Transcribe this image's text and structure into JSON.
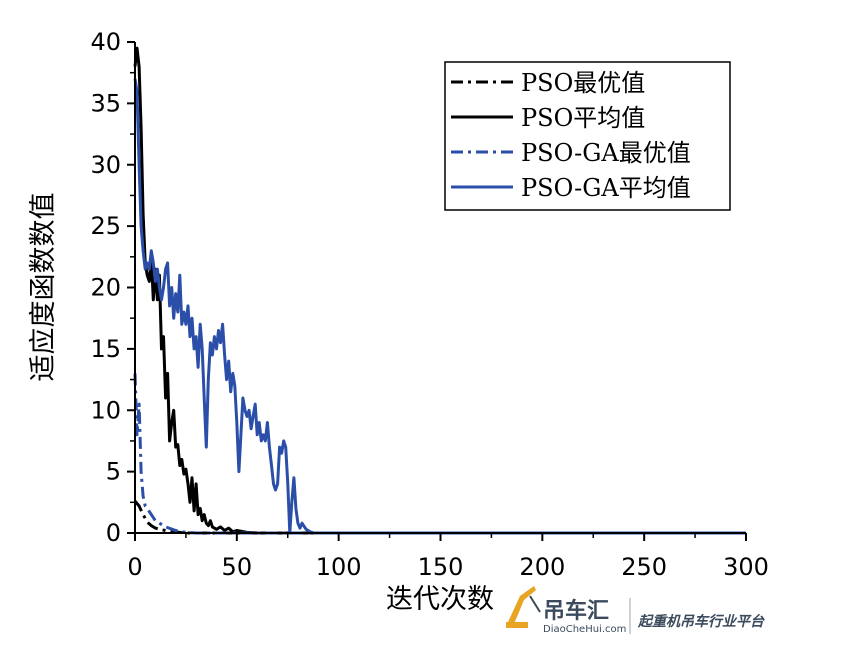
{
  "chart_data": {
    "type": "line",
    "title": "",
    "xlabel": "迭代次数",
    "ylabel": "适应度函数数值",
    "xlim": [
      0,
      300
    ],
    "ylim": [
      0,
      40
    ],
    "x_ticks": [
      0,
      50,
      100,
      150,
      200,
      250,
      300
    ],
    "y_ticks": [
      0,
      5,
      10,
      15,
      20,
      25,
      30,
      35,
      40
    ],
    "grid": false,
    "legend_position": "top-right",
    "series": [
      {
        "name": "PSO最优值",
        "color": "#000000",
        "style": "dashdot",
        "points": [
          [
            0,
            2.6
          ],
          [
            2,
            2.2
          ],
          [
            4,
            1.5
          ],
          [
            6,
            0.9
          ],
          [
            8,
            0.6
          ],
          [
            10,
            0.4
          ],
          [
            12,
            0.3
          ],
          [
            15,
            0.2
          ],
          [
            18,
            0.1
          ],
          [
            22,
            0.05
          ],
          [
            26,
            0
          ],
          [
            300,
            0
          ]
        ]
      },
      {
        "name": "PSO平均值",
        "color": "#000000",
        "style": "solid",
        "points": [
          [
            0,
            38
          ],
          [
            1,
            39.5
          ],
          [
            2,
            38
          ],
          [
            3,
            33
          ],
          [
            4,
            26
          ],
          [
            5,
            22
          ],
          [
            6,
            21
          ],
          [
            7,
            20.5
          ],
          [
            8,
            22.5
          ],
          [
            9,
            19
          ],
          [
            10,
            21.5
          ],
          [
            11,
            19
          ],
          [
            12,
            21
          ],
          [
            13,
            15
          ],
          [
            14,
            16
          ],
          [
            15,
            11
          ],
          [
            16,
            13
          ],
          [
            17,
            7.5
          ],
          [
            18,
            9
          ],
          [
            19,
            10
          ],
          [
            20,
            7
          ],
          [
            21,
            7.2
          ],
          [
            22,
            5.5
          ],
          [
            23,
            6
          ],
          [
            24,
            4.8
          ],
          [
            25,
            5.2
          ],
          [
            26,
            4
          ],
          [
            27,
            2.5
          ],
          [
            28,
            4.5
          ],
          [
            29,
            1.8
          ],
          [
            30,
            4
          ],
          [
            31,
            1.5
          ],
          [
            32,
            2
          ],
          [
            33,
            1
          ],
          [
            34,
            1.5
          ],
          [
            35,
            0.8
          ],
          [
            36,
            0.6
          ],
          [
            37,
            1
          ],
          [
            38,
            0.5
          ],
          [
            40,
            0.3
          ],
          [
            42,
            0.5
          ],
          [
            44,
            0.2
          ],
          [
            46,
            0.4
          ],
          [
            48,
            0.1
          ],
          [
            50,
            0.2
          ],
          [
            55,
            0.05
          ],
          [
            60,
            0
          ],
          [
            300,
            0
          ]
        ]
      },
      {
        "name": "PSO-GA最优值",
        "color": "#2b4fa8",
        "style": "dashdot",
        "points": [
          [
            0,
            13
          ],
          [
            1,
            8
          ],
          [
            2,
            10.5
          ],
          [
            3,
            5
          ],
          [
            4,
            3
          ],
          [
            5,
            2.2
          ],
          [
            6,
            2
          ],
          [
            8,
            1.5
          ],
          [
            10,
            1
          ],
          [
            12,
            0.8
          ],
          [
            15,
            0.5
          ],
          [
            20,
            0.2
          ],
          [
            25,
            0.05
          ],
          [
            30,
            0
          ],
          [
            300,
            0
          ]
        ]
      },
      {
        "name": "PSO-GA平均值",
        "color": "#2b4fa8",
        "style": "solid",
        "points": [
          [
            0,
            37
          ],
          [
            1,
            36
          ],
          [
            2,
            30
          ],
          [
            3,
            25
          ],
          [
            4,
            23
          ],
          [
            5,
            21.5
          ],
          [
            6,
            22
          ],
          [
            7,
            21.5
          ],
          [
            8,
            23
          ],
          [
            9,
            22
          ],
          [
            10,
            20.5
          ],
          [
            11,
            21.5
          ],
          [
            12,
            20
          ],
          [
            13,
            19
          ],
          [
            14,
            20
          ],
          [
            15,
            21.5
          ],
          [
            16,
            22
          ],
          [
            17,
            18.5
          ],
          [
            18,
            20
          ],
          [
            19,
            17.5
          ],
          [
            20,
            19.5
          ],
          [
            21,
            18
          ],
          [
            22,
            21
          ],
          [
            23,
            17
          ],
          [
            24,
            18
          ],
          [
            25,
            17
          ],
          [
            26,
            18.5
          ],
          [
            27,
            16
          ],
          [
            28,
            17.5
          ],
          [
            29,
            15
          ],
          [
            30,
            16
          ],
          [
            31,
            13.5
          ],
          [
            32,
            17
          ],
          [
            33,
            15
          ],
          [
            34,
            11
          ],
          [
            35,
            7
          ],
          [
            36,
            12.5
          ],
          [
            37,
            15.5
          ],
          [
            38,
            14.5
          ],
          [
            39,
            16
          ],
          [
            40,
            15
          ],
          [
            41,
            16.5
          ],
          [
            42,
            15.5
          ],
          [
            43,
            17
          ],
          [
            44,
            14.5
          ],
          [
            45,
            12.5
          ],
          [
            46,
            14
          ],
          [
            47,
            11.5
          ],
          [
            48,
            13
          ],
          [
            49,
            12
          ],
          [
            50,
            9
          ],
          [
            51,
            5
          ],
          [
            52,
            8
          ],
          [
            53,
            11
          ],
          [
            54,
            10
          ],
          [
            55,
            9.5
          ],
          [
            56,
            10
          ],
          [
            57,
            8.5
          ],
          [
            58,
            9.5
          ],
          [
            59,
            10.5
          ],
          [
            60,
            8
          ],
          [
            61,
            9
          ],
          [
            62,
            7.5
          ],
          [
            63,
            8
          ],
          [
            64,
            7.5
          ],
          [
            65,
            9
          ],
          [
            66,
            7
          ],
          [
            67,
            5.5
          ],
          [
            68,
            4
          ],
          [
            69,
            3.5
          ],
          [
            70,
            4
          ],
          [
            71,
            7
          ],
          [
            72,
            6.5
          ],
          [
            73,
            7.5
          ],
          [
            74,
            7
          ],
          [
            75,
            4
          ],
          [
            76,
            0
          ],
          [
            77,
            2.5
          ],
          [
            78,
            4.5
          ],
          [
            79,
            2
          ],
          [
            80,
            0.8
          ],
          [
            81,
            0.4
          ],
          [
            82,
            0.8
          ],
          [
            84,
            0.3
          ],
          [
            86,
            0.1
          ],
          [
            88,
            0
          ],
          [
            300,
            0
          ]
        ]
      }
    ]
  },
  "watermark": {
    "brand": "吊车汇",
    "url": "DiaoCheHui.com",
    "slogan": "起重机吊车行业平台"
  }
}
